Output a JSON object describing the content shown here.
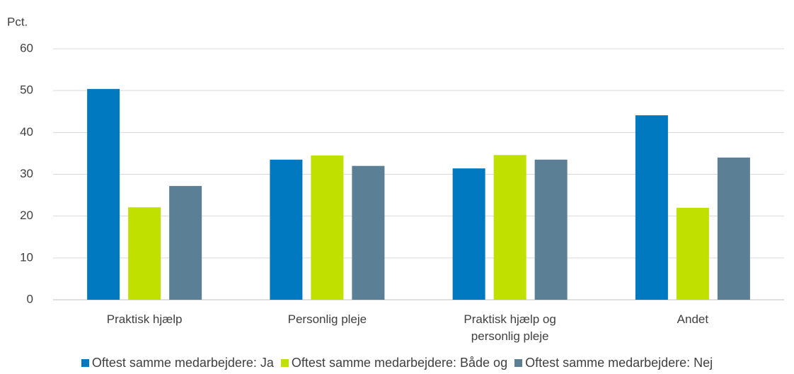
{
  "chart_data": {
    "type": "bar",
    "y_label": "Pct.",
    "categories": [
      "Praktisk hjælp",
      "Personlig pleje",
      "Praktisk hjælp og personlig pleje",
      "Andet"
    ],
    "series": [
      {
        "name": "Oftest samme medarbejdere: Ja",
        "color": "#0079c1",
        "values": [
          50.4,
          33.5,
          31.4,
          44.1
        ]
      },
      {
        "name": "Oftest samme medarbejdere: Både og",
        "color": "#c0e000",
        "values": [
          22.1,
          34.5,
          34.6,
          22
        ]
      },
      {
        "name": "Oftest samme medarbejdere: Nej",
        "color": "#5b7f95",
        "values": [
          27.2,
          32,
          33.5,
          34
        ]
      }
    ],
    "ylim": [
      0,
      60
    ],
    "yticks": [
      0,
      10,
      20,
      30,
      40,
      50,
      60
    ],
    "grid": true,
    "legend": "bottom"
  }
}
